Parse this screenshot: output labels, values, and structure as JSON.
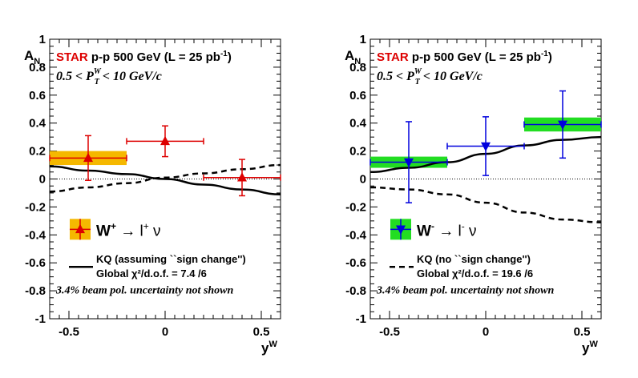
{
  "chart_data": [
    {
      "type": "scatter",
      "panel": "left",
      "header_star": "STAR",
      "header_rest": " p-p 500 GeV (L = 25 pb",
      "header_exp": "-1",
      "header_close": ")",
      "cut_text": "0.5 < P",
      "cut_sub": "T",
      "cut_sup": "W",
      "cut_rest": " < 10 GeV/c",
      "ylabel": "A",
      "ylabel_sub": "N",
      "xlabel": "y",
      "xlabel_sup": "W",
      "xlim": [
        -0.6,
        0.6
      ],
      "ylim": [
        -1,
        1
      ],
      "xticks": [
        -0.5,
        0,
        0.5
      ],
      "xtick_labels": [
        "-0.5",
        "0",
        "0.5"
      ],
      "yticks": [
        -1,
        -0.8,
        -0.6,
        -0.4,
        -0.2,
        0,
        0.2,
        0.4,
        0.6,
        0.8,
        1
      ],
      "ytick_labels": [
        "-1",
        "-0.8",
        "-0.6",
        "-0.4",
        "-0.2",
        "0",
        "0.2",
        "0.4",
        "0.6",
        "0.8",
        "1"
      ],
      "series": [
        {
          "marker": "triangle-up",
          "color": "#dd0000",
          "box_color": "#f5b800",
          "points": [
            {
              "x": -0.4,
              "y": 0.15,
              "xlo": -0.6,
              "xhi": -0.2,
              "yerr": 0.16,
              "syst": 0.05
            },
            {
              "x": 0.0,
              "y": 0.27,
              "xlo": -0.2,
              "xhi": 0.2,
              "yerr": 0.11
            },
            {
              "x": 0.4,
              "y": 0.01,
              "xlo": 0.2,
              "xhi": 0.6,
              "yerr": 0.13
            }
          ]
        }
      ],
      "curves": [
        {
          "style": "solid",
          "x": [
            -0.6,
            -0.4,
            -0.2,
            0.0,
            0.2,
            0.4,
            0.6
          ],
          "y": [
            0.09,
            0.06,
            0.035,
            0.0,
            -0.04,
            -0.075,
            -0.11
          ]
        },
        {
          "style": "dashed",
          "x": [
            -0.6,
            -0.4,
            -0.2,
            0.0,
            0.2,
            0.4,
            0.6
          ],
          "y": [
            -0.09,
            -0.06,
            -0.03,
            0.01,
            0.04,
            0.07,
            0.1
          ]
        }
      ],
      "legend_entry": "W",
      "legend_entry_sup": "+",
      "legend_arrow": " → l",
      "legend_arrow_sup": "+",
      "legend_nu": " ν",
      "model_line1": "KQ (assuming ``sign change'')",
      "model_line2": "Global χ²/d.o.f. = 7.4  /6",
      "model_style": "solid",
      "footnote": "3.4% beam pol. uncertainty not shown"
    },
    {
      "type": "scatter",
      "panel": "right",
      "header_star": "STAR",
      "header_rest": " p-p 500 GeV (L = 25 pb",
      "header_exp": "-1",
      "header_close": ")",
      "cut_text": "0.5 < P",
      "cut_sub": "T",
      "cut_sup": "W",
      "cut_rest": " < 10 GeV/c",
      "ylabel": "A",
      "ylabel_sub": "N",
      "xlabel": "y",
      "xlabel_sup": "W",
      "xlim": [
        -0.6,
        0.6
      ],
      "ylim": [
        -1,
        1
      ],
      "xticks": [
        -0.5,
        0,
        0.5
      ],
      "xtick_labels": [
        "-0.5",
        "0",
        "0.5"
      ],
      "yticks": [
        -1,
        -0.8,
        -0.6,
        -0.4,
        -0.2,
        0,
        0.2,
        0.4,
        0.6,
        0.8,
        1
      ],
      "ytick_labels": [
        "-1",
        "-0.8",
        "-0.6",
        "-0.4",
        "-0.2",
        "0",
        "0.2",
        "0.4",
        "0.6",
        "0.8",
        "1"
      ],
      "series": [
        {
          "marker": "triangle-down",
          "color": "#0000dd",
          "box_color": "#22dd22",
          "points": [
            {
              "x": -0.4,
              "y": 0.12,
              "xlo": -0.6,
              "xhi": -0.2,
              "yerr": 0.29,
              "syst": 0.04
            },
            {
              "x": 0.0,
              "y": 0.235,
              "xlo": -0.2,
              "xhi": 0.2,
              "yerr": 0.21
            },
            {
              "x": 0.4,
              "y": 0.39,
              "xlo": 0.2,
              "xhi": 0.6,
              "yerr": 0.24,
              "syst": 0.05
            }
          ]
        }
      ],
      "curves": [
        {
          "style": "solid",
          "x": [
            -0.6,
            -0.4,
            -0.2,
            0.0,
            0.2,
            0.4,
            0.6
          ],
          "y": [
            0.05,
            0.08,
            0.12,
            0.18,
            0.24,
            0.28,
            0.3
          ]
        },
        {
          "style": "dashed",
          "x": [
            -0.6,
            -0.4,
            -0.2,
            0.0,
            0.2,
            0.4,
            0.6
          ],
          "y": [
            -0.06,
            -0.075,
            -0.11,
            -0.17,
            -0.24,
            -0.29,
            -0.31
          ]
        }
      ],
      "legend_entry": "W",
      "legend_entry_sup": "-",
      "legend_arrow": " → l",
      "legend_arrow_sup": "-",
      "legend_nu": " ν",
      "model_line1": "KQ (no ``sign change'')",
      "model_line2": "Global χ²/d.o.f. = 19.6  /6",
      "model_style": "dashed",
      "footnote": "3.4% beam pol. uncertainty not shown"
    }
  ]
}
